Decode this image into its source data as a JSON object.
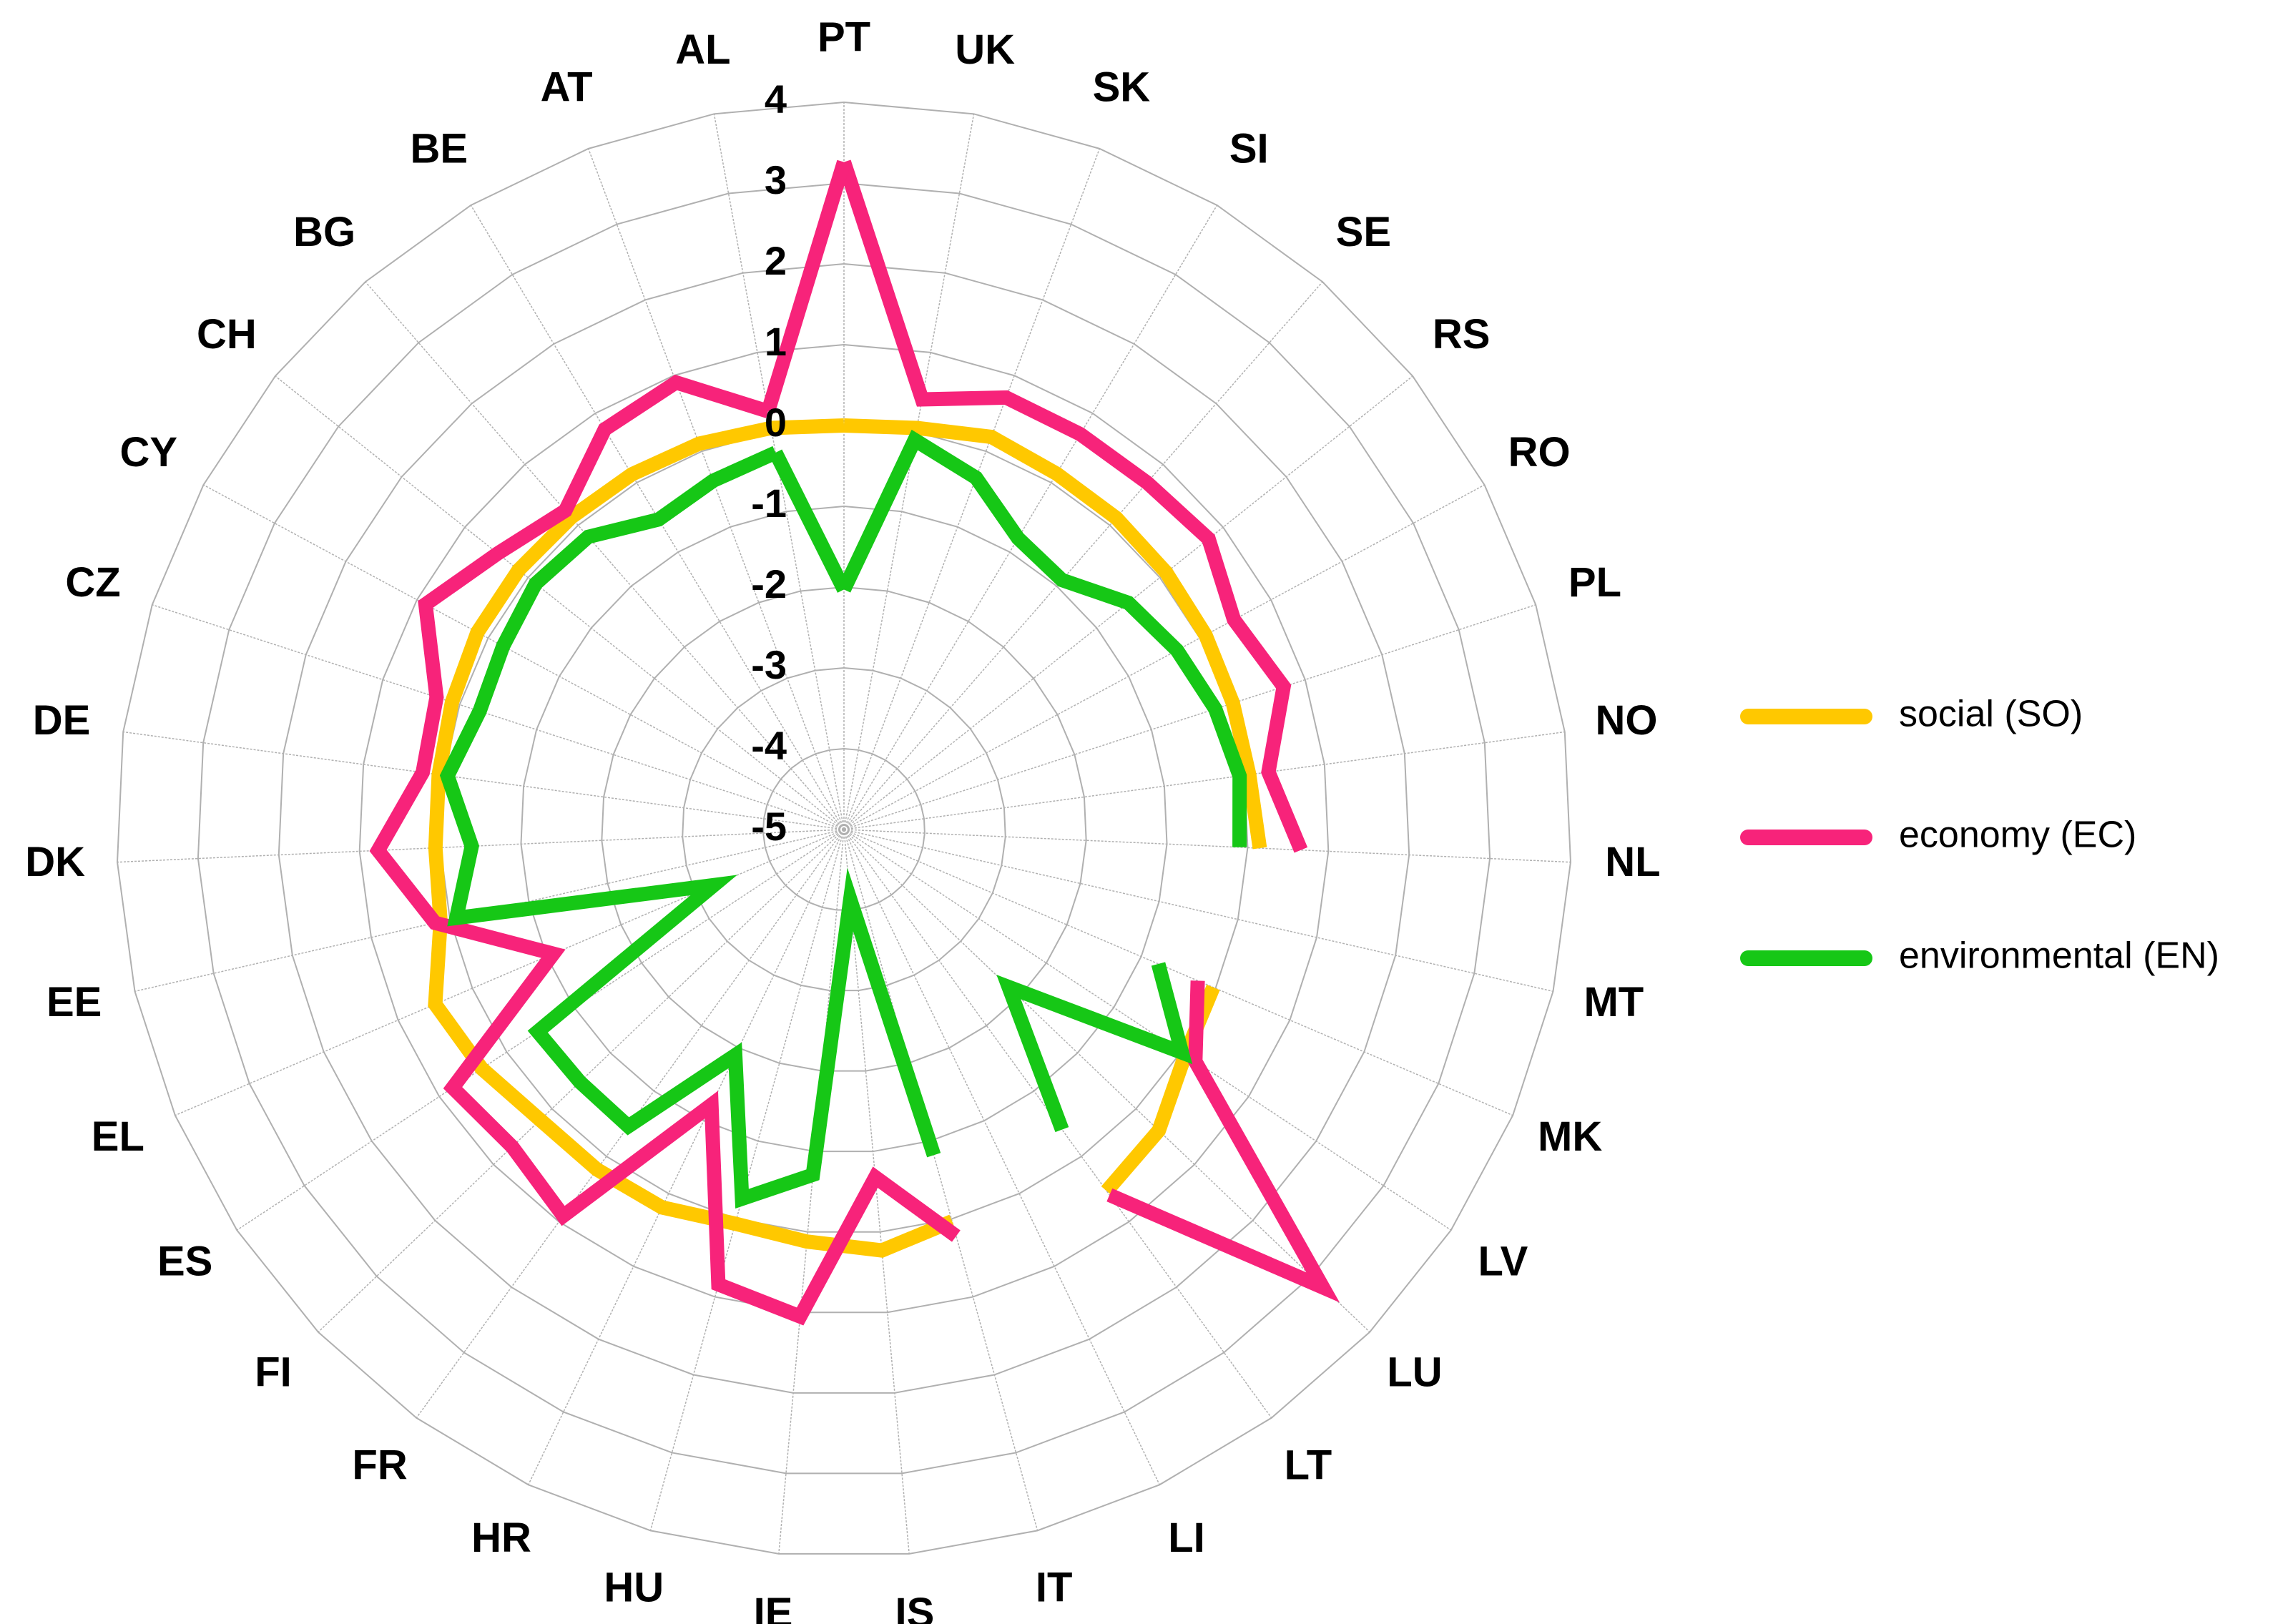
{
  "chart_data": {
    "type": "radar",
    "categories": [
      "PT",
      "UK",
      "SK",
      "SI",
      "SE",
      "RS",
      "RO",
      "PL",
      "NO",
      "NL",
      "MT",
      "MK",
      "LV",
      "LU",
      "LT",
      "LI",
      "IT",
      "IS",
      "IE",
      "HU",
      "HR",
      "FR",
      "FI",
      "ES",
      "EL",
      "EE",
      "DK",
      "DE",
      "CZ",
      "CY",
      "CH",
      "BG",
      "BE",
      "AT",
      "AL"
    ],
    "rlim": [
      -5,
      4
    ],
    "rticks": [
      -5,
      -4,
      -3,
      -2,
      -1,
      0,
      1,
      2,
      3,
      4
    ],
    "grid": true,
    "legend": "right",
    "series": [
      {
        "name": "social (SO)",
        "color": "#ffc800",
        "values": [
          0.0,
          0.05,
          0.19,
          0.13,
          0.12,
          0.1,
          0.08,
          0.06,
          0.06,
          0.15,
          null,
          -0.03,
          0.06,
          0.39,
          0.53,
          null,
          0.03,
          0.23,
          0.12,
          0.06,
          0.19,
          0.2,
          0.2,
          0.37,
          0.5,
          0.12,
          0.06,
          0.06,
          0.1,
          0.15,
          0.15,
          0.13,
          0.12,
          0.1,
          0.05
        ]
      },
      {
        "name": "economy (EC)",
        "color": "#f7237a",
        "values": [
          3.26,
          0.41,
          0.71,
          0.7,
          0.7,
          0.77,
          0.48,
          0.72,
          0.3,
          0.66,
          null,
          -0.24,
          0.21,
          3.2,
          0.59,
          null,
          0.22,
          -0.68,
          1.05,
          0.84,
          -1.22,
          0.91,
          0.68,
          0.8,
          -1.09,
          0.19,
          0.77,
          0.26,
          0.3,
          0.88,
          0.48,
          0.24,
          0.77,
          0.91,
          0.26
        ]
      },
      {
        "name": "environmental (EN)",
        "color": "#16c716",
        "values": [
          -2.03,
          -0.1,
          -0.35,
          -0.8,
          -0.9,
          -0.5,
          -0.32,
          -0.17,
          -0.06,
          -0.1,
          null,
          -0.77,
          0.01,
          -2.18,
          -0.41,
          null,
          -0.82,
          -4.13,
          -0.71,
          -0.26,
          -1.9,
          -0.46,
          -0.48,
          -0.46,
          -3.25,
          -0.08,
          -0.39,
          -0.05,
          -0.26,
          -0.21,
          -0.12,
          -0.19,
          -0.53,
          -0.39,
          -0.26
        ]
      }
    ]
  }
}
